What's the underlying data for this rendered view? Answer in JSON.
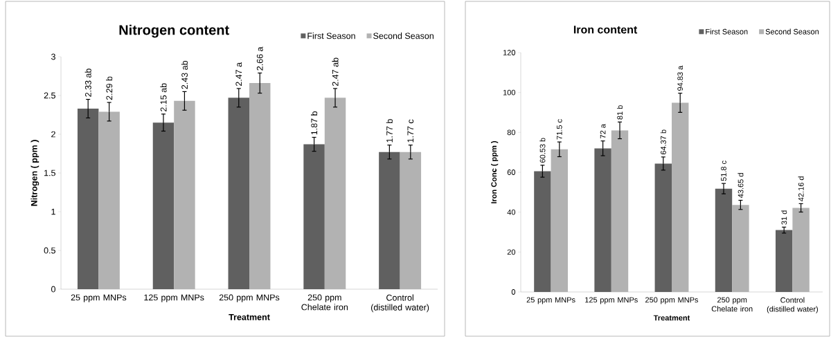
{
  "chart_data": [
    {
      "type": "bar",
      "title": "Nitrogen content",
      "xlabel": "Treatment",
      "ylabel": "Nitrogen ( ppm )",
      "categories": [
        "25 ppm MNPs",
        "125 ppm MNPs",
        "250 ppm MNPs",
        "250 ppm Chelate iron",
        "Control (distilled water)"
      ],
      "series": [
        {
          "name": "First Season",
          "color": "#606060",
          "values": [
            2.33,
            2.15,
            2.47,
            1.87,
            1.77
          ],
          "errors": [
            0.12,
            0.11,
            0.12,
            0.09,
            0.09
          ],
          "value_labels": [
            "2.33 ab",
            "2.15 ab",
            "2.47 a",
            "1.87 b",
            "1.77 b"
          ]
        },
        {
          "name": "Second Season",
          "color": "#b2b2b2",
          "values": [
            2.29,
            2.43,
            2.66,
            2.47,
            1.77
          ],
          "errors": [
            0.12,
            0.12,
            0.13,
            0.12,
            0.09
          ],
          "value_labels": [
            "2.29 b",
            "2.43 ab",
            "2.66 a",
            "2.47 ab",
            "1.77 c"
          ]
        }
      ],
      "ylim": [
        0,
        3
      ],
      "yticks": [
        0,
        0.5,
        1,
        1.5,
        2,
        2.5,
        3
      ],
      "legend": "top right",
      "grid": false
    },
    {
      "type": "bar",
      "title": "Iron content",
      "xlabel": "Treatment",
      "ylabel": "Iron Conc ( ppm )",
      "categories": [
        "25 ppm MNPs",
        "125 ppm MNPs",
        "250 ppm MNPs",
        "250 ppm Chelate iron",
        "Control (distilled water)"
      ],
      "series": [
        {
          "name": "First Season",
          "color": "#606060",
          "values": [
            60.53,
            72,
            64.37,
            51.8,
            31
          ],
          "errors": [
            3,
            3.7,
            3.3,
            2.6,
            1.5
          ],
          "value_labels": [
            "60.53 b",
            "72 a",
            "64.37 b",
            "51.8 c",
            "31 d"
          ]
        },
        {
          "name": "Second Season",
          "color": "#b2b2b2",
          "values": [
            71.5,
            81,
            94.83,
            43.65,
            42.16
          ],
          "errors": [
            3.7,
            4.2,
            4.8,
            2.3,
            2.1
          ],
          "value_labels": [
            "71.5 c",
            "81 b",
            "94.83 a",
            "43.65 d",
            "42.16 d"
          ]
        }
      ],
      "ylim": [
        0,
        120
      ],
      "yticks": [
        0,
        20,
        40,
        60,
        80,
        100,
        120
      ],
      "legend": "top right",
      "grid": false
    }
  ]
}
